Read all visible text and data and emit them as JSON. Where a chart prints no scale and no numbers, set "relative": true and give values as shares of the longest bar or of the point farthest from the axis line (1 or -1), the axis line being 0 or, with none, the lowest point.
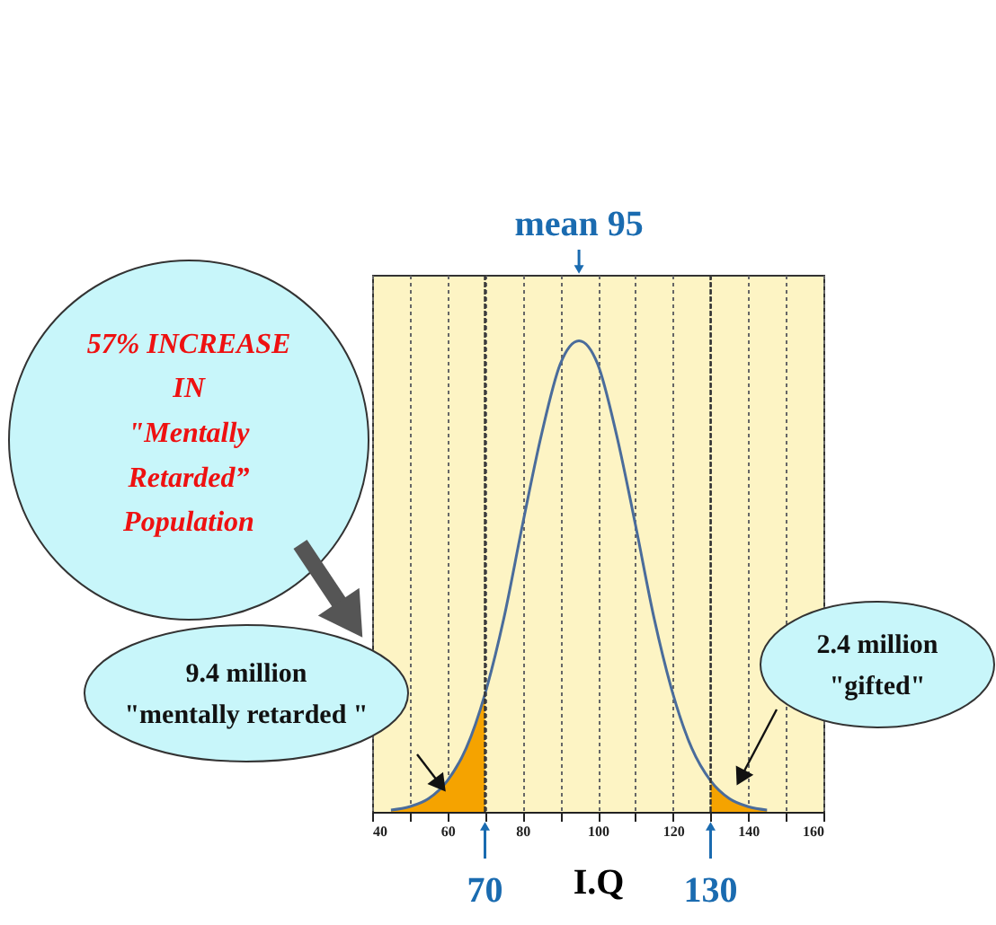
{
  "chart_data": {
    "type": "line",
    "xlabel": "I.Q",
    "relative": true,
    "xlim": [
      40,
      160
    ],
    "xticks": [
      40,
      {
        "value": 50,
        "label": null
      },
      60,
      {
        "value": 70,
        "label": null
      },
      80,
      {
        "value": 90,
        "label": null
      },
      100,
      {
        "value": 110,
        "label": null
      },
      120,
      {
        "value": 130,
        "label": null
      },
      140,
      {
        "value": 150,
        "label": null
      },
      160
    ],
    "grid": "x",
    "series": [
      {
        "type": "area",
        "color": "#f5a300",
        "x": [
          45,
          50,
          55,
          60,
          65,
          70
        ],
        "values": [
          0.004,
          0.011,
          0.028,
          0.066,
          0.135,
          0.25
        ]
      },
      {
        "type": "area",
        "color": "#f5a300",
        "x": [
          130,
          135,
          140,
          145
        ],
        "values": [
          0.066,
          0.028,
          0.011,
          0.004
        ]
      },
      {
        "color": "#4a6c9b",
        "x": [
          45,
          50,
          55,
          60,
          65,
          70,
          75,
          80,
          85,
          90,
          95,
          100,
          105,
          110,
          115,
          120,
          125,
          130,
          135,
          140,
          145
        ],
        "values": [
          0.004,
          0.011,
          0.028,
          0.066,
          0.135,
          0.25,
          0.41,
          0.61,
          0.8,
          0.95,
          1,
          0.95,
          0.8,
          0.61,
          0.41,
          0.25,
          0.135,
          0.066,
          0.028,
          0.011,
          0.004
        ]
      }
    ],
    "ref_lines": [
      {
        "axis": "x",
        "value": 70,
        "label": "70",
        "color": "#1a6bb0"
      },
      {
        "axis": "x",
        "value": 130,
        "label": "130",
        "color": "#1a6bb0"
      }
    ],
    "annotations": [
      {
        "text": "mean 95",
        "x": 95
      },
      "57% INCREASE\nIN\n\"Mentally\nRetarded”\nPopulation",
      "9.4 million\n\"mentally retarded \"",
      "2.4 million\n\"gifted\""
    ]
  }
}
